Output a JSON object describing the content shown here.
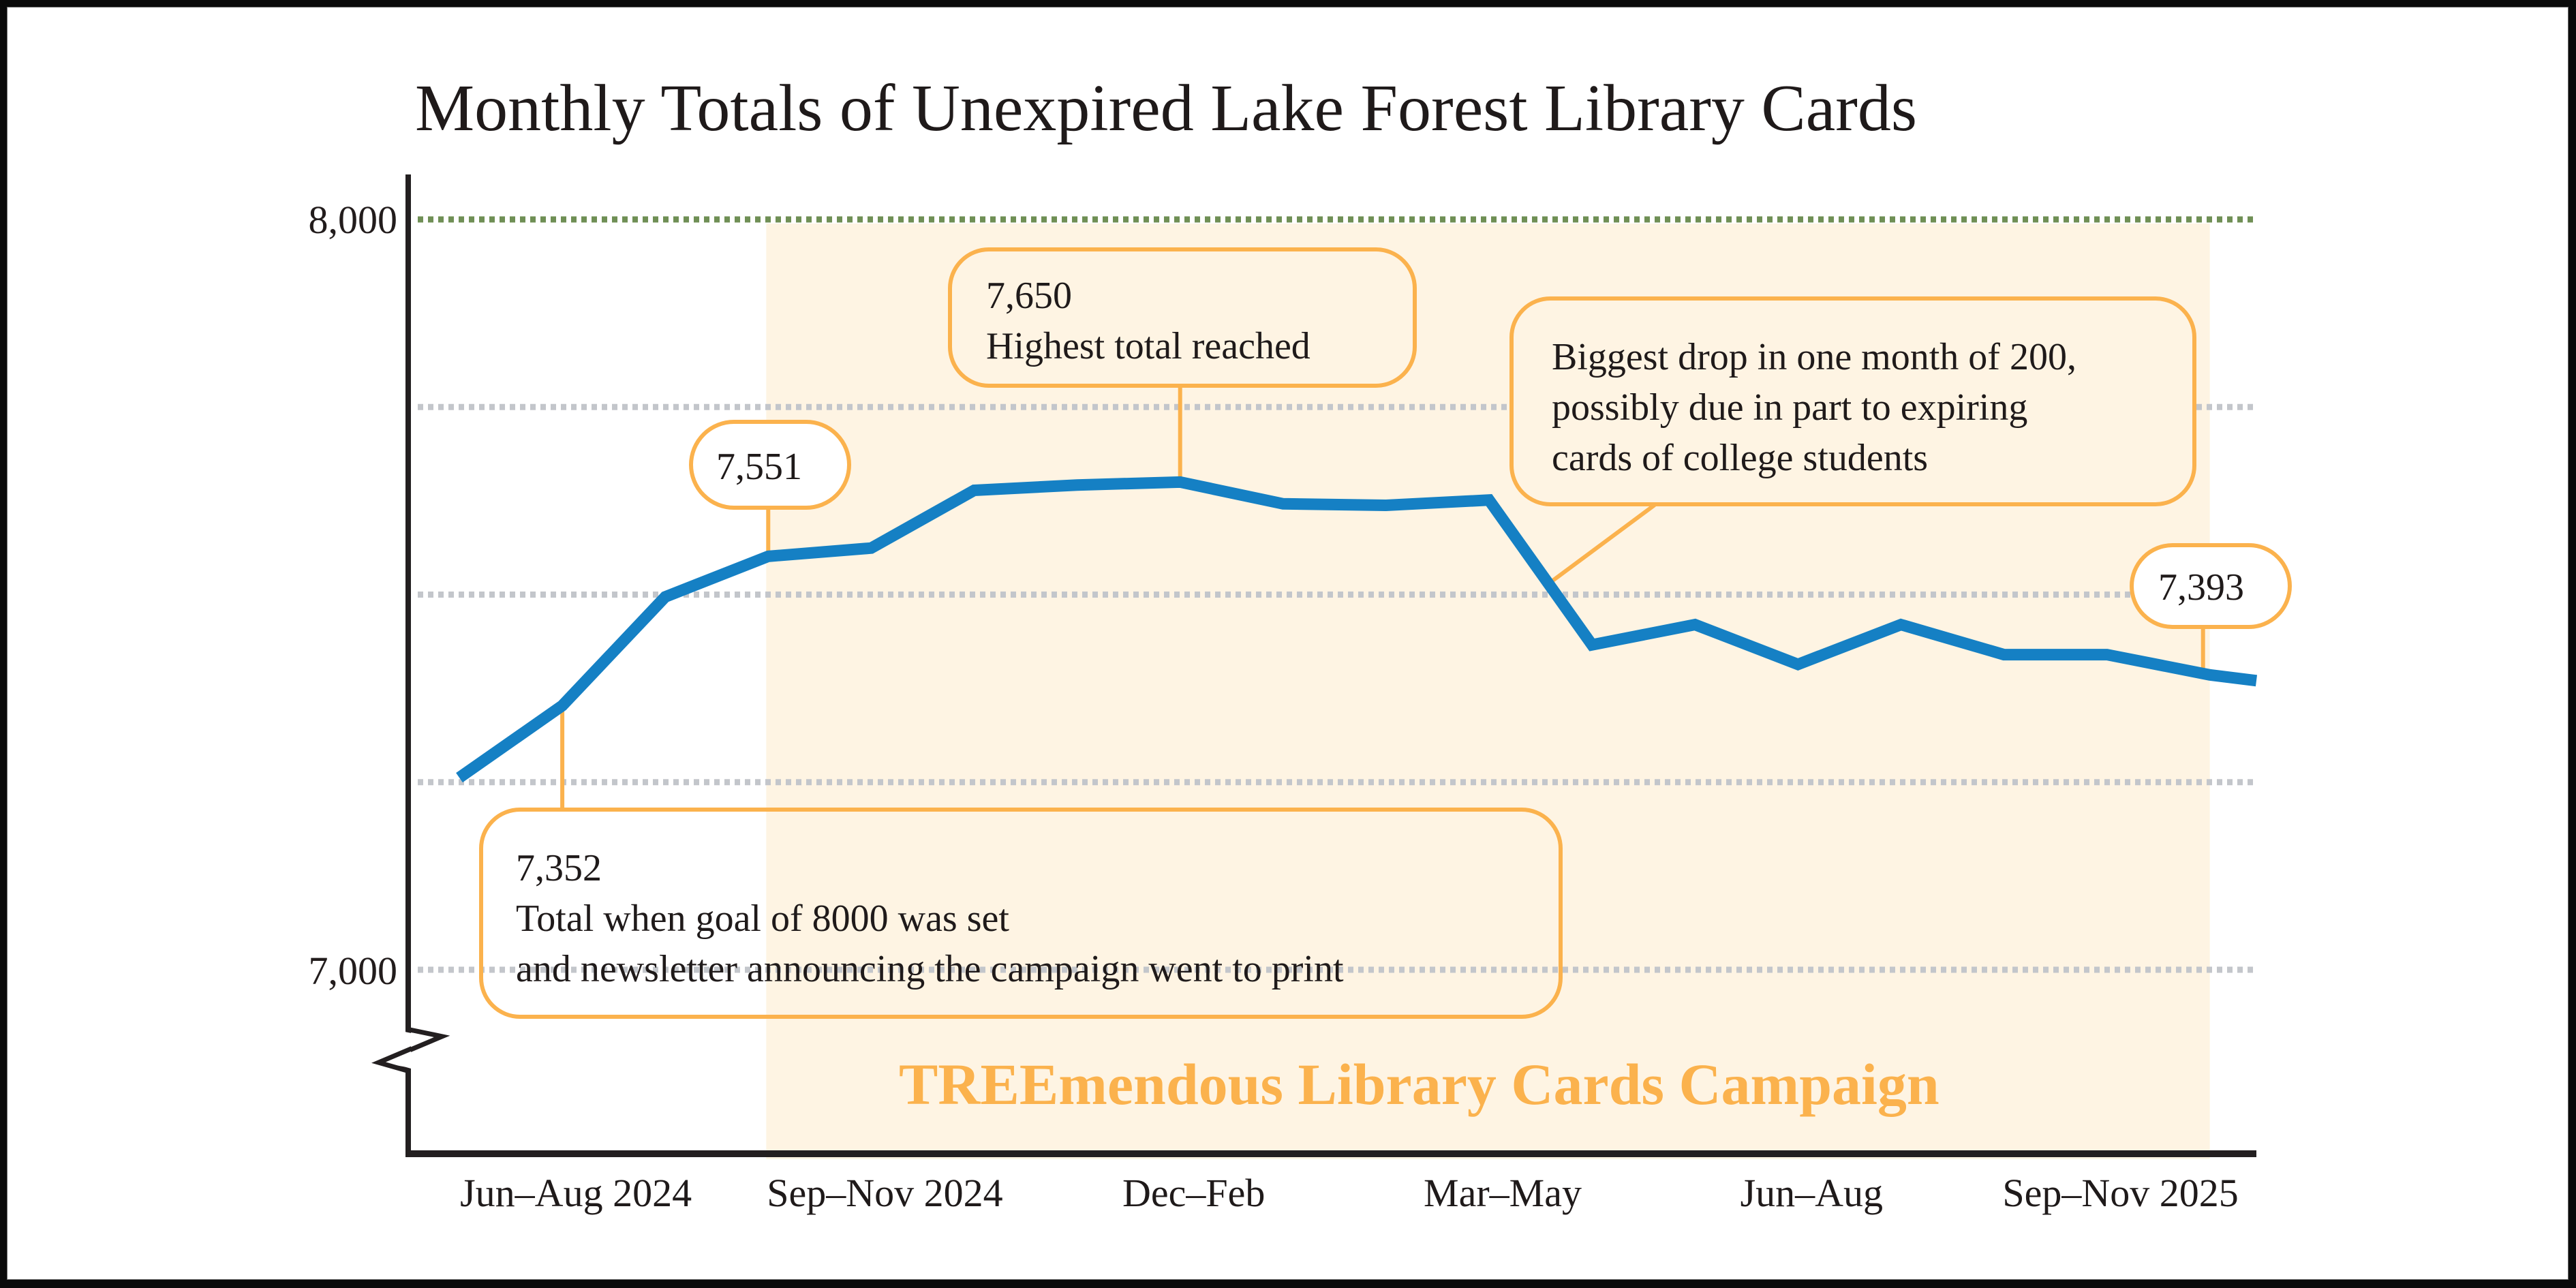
{
  "chart_data": {
    "type": "line",
    "title": "Monthly Totals of Unexpired Lake Forest Library Cards",
    "xlabel": "",
    "ylabel": "",
    "ylim": [
      7000,
      8000
    ],
    "y_ticks": [
      {
        "value": 8000,
        "label": "8,000"
      },
      {
        "value": 7000,
        "label": "7,000"
      }
    ],
    "gridlines": [
      8000,
      7750,
      7500,
      7250,
      7000
    ],
    "goal_line": 8000,
    "x_tick_labels": [
      {
        "label": "Jun–Aug 2024",
        "months": [
          0,
          2
        ]
      },
      {
        "label": "Sep–Nov 2024",
        "months": [
          3,
          5
        ]
      },
      {
        "label": "Dec–Feb",
        "months": [
          6,
          8
        ]
      },
      {
        "label": "Mar–May",
        "months": [
          9,
          11
        ]
      },
      {
        "label": "Jun–Aug",
        "months": [
          12,
          14
        ]
      },
      {
        "label": "Sep–Nov 2025",
        "months": [
          15,
          17
        ]
      }
    ],
    "series": [
      {
        "name": "Unexpired library cards",
        "x": [
          "Jun 2024",
          "Jul 2024",
          "Aug 2024",
          "Sep 2024",
          "Oct 2024",
          "Nov 2024",
          "Dec 2024",
          "Jan 2025",
          "Feb 2025",
          "Mar 2025",
          "Apr 2025",
          "May 2025",
          "Jun 2025",
          "Jul 2025",
          "Aug 2025",
          "Sep 2025",
          "Oct 2025",
          "Nov 2025",
          "Dec 2025 (partial)"
        ],
        "values": [
          7256,
          7352,
          7497,
          7551,
          7562,
          7639,
          7646,
          7650,
          7621,
          7619,
          7626,
          7433,
          7460,
          7407,
          7460,
          7420,
          7420,
          7393,
          7376
        ],
        "color": "#1580c4"
      }
    ],
    "campaign_period": {
      "label": "TREEmendous Library Cards Campaign",
      "start_month": 3,
      "end_month": 17
    },
    "annotations": [
      {
        "id": "start",
        "month": 1,
        "lines": [
          "7,352",
          "Total when goal of 8000 was set",
          "and newsletter announcing the campaign went to print"
        ]
      },
      {
        "id": "a7551",
        "month": 3,
        "lines": [
          "7,551"
        ]
      },
      {
        "id": "peak",
        "month": 7,
        "lines": [
          "7,650",
          "Highest total reached"
        ]
      },
      {
        "id": "drop",
        "month": 10.5,
        "lines": [
          "Biggest drop in one month of 200,",
          "possibly due in part to expiring",
          "cards of college students"
        ]
      },
      {
        "id": "last",
        "month": 17,
        "lines": [
          "7,393"
        ]
      }
    ],
    "colors": {
      "line": "#1580c4",
      "accent": "#fbb24d",
      "campaign_fill": "#fef4e3",
      "goal_grid": "#6f8f55",
      "grid": "#c3c6cb",
      "axis": "#231f20"
    }
  }
}
